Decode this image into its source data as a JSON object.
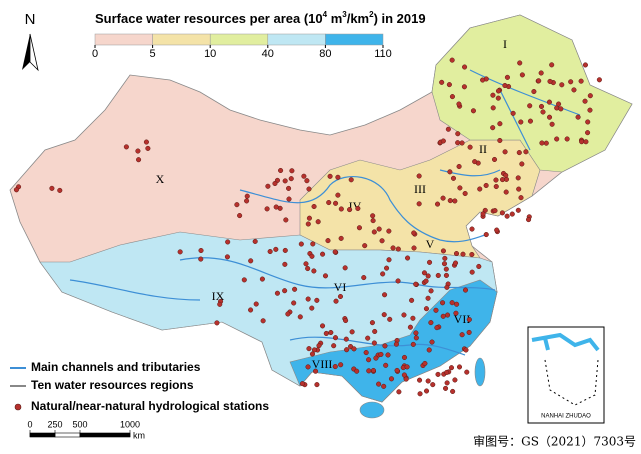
{
  "title_parts": [
    "Surface water resources per area (10",
    "4",
    " m",
    "3",
    "/km",
    "2",
    ") in 2019"
  ],
  "colorbar": {
    "ticks": [
      0,
      5,
      10,
      40,
      80,
      110
    ],
    "colors": [
      "#f6d6cc",
      "#f4e3a8",
      "#e1ee9f",
      "#bfe7f3",
      "#3fb4ea"
    ]
  },
  "region_labels": [
    "I",
    "II",
    "III",
    "IV",
    "V",
    "VI",
    "VII",
    "VIII",
    "IX",
    "X"
  ],
  "legend": [
    "Main channels and tributaries",
    "Ten water resources regions",
    "Natural/near-natural hydrological stations"
  ],
  "scale_bar": {
    "ticks": [
      0,
      250,
      500,
      1000
    ],
    "unit": "km"
  },
  "north": "N",
  "inset_label": "NANHAI ZHUDAO",
  "approval": "审图号：GS（2021）7303号"
}
